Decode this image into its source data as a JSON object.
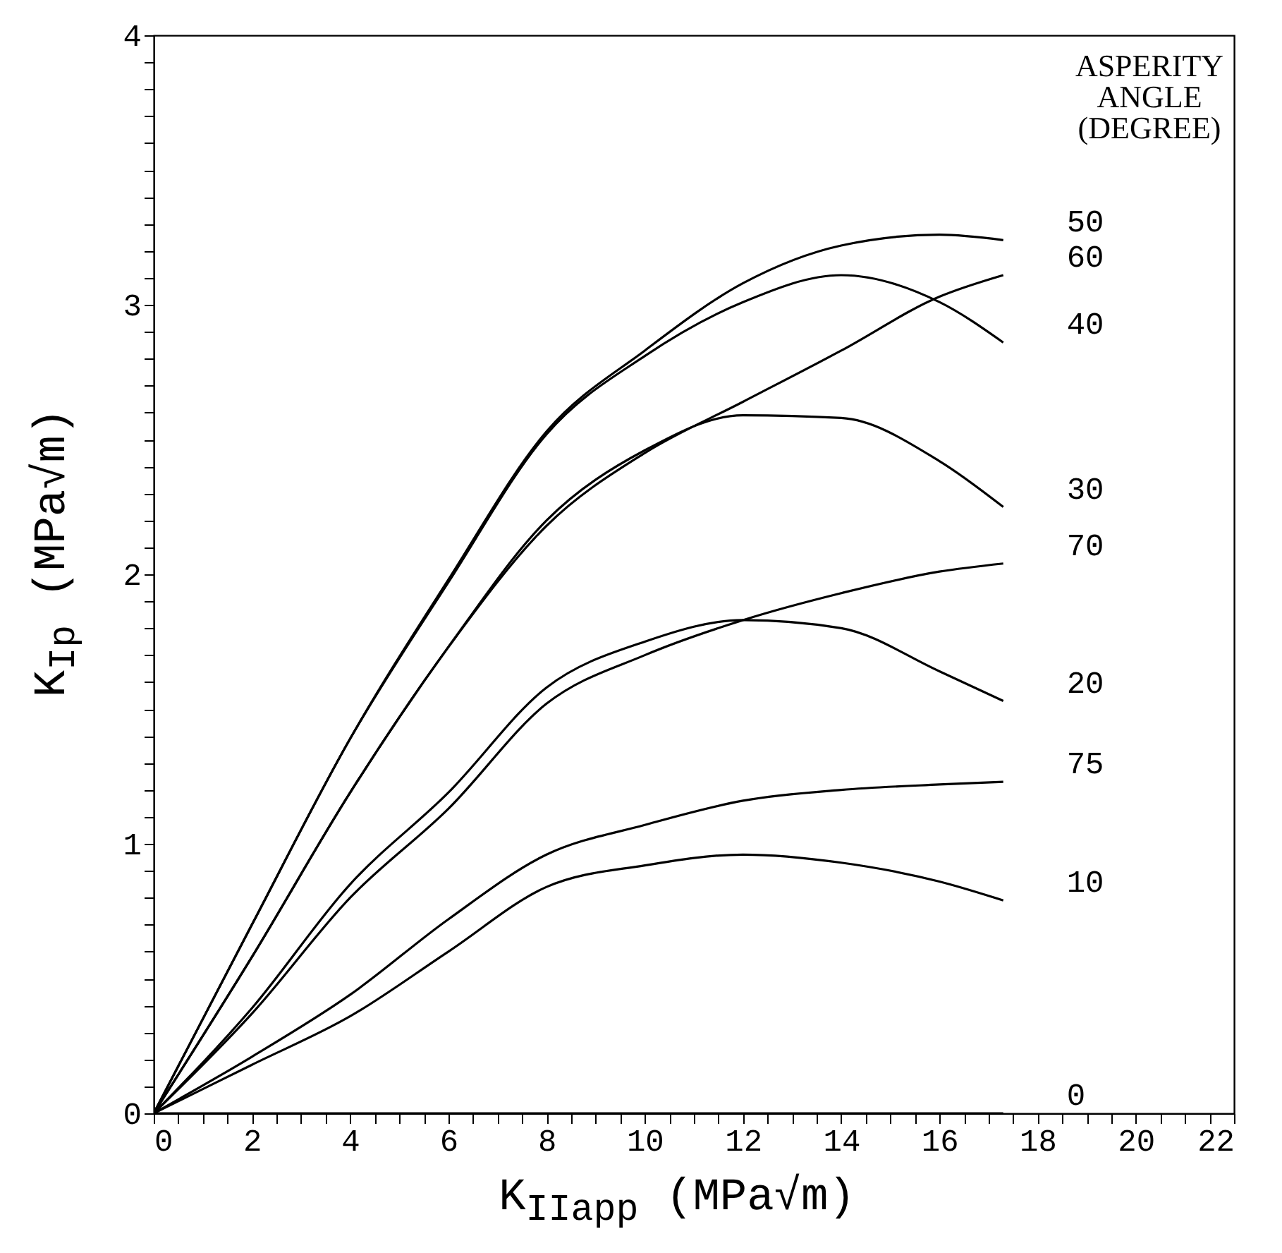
{
  "chart_data": {
    "type": "line",
    "xlabel": "K$_{IIapp}$   (MPa√m)",
    "ylabel": "K$_{Ip}$ (MPa√m)",
    "legend_title": "ASPERITY ANGLE (DEGREE)",
    "x": [
      0,
      2,
      4,
      6,
      8,
      10,
      12,
      14,
      16,
      17.3
    ],
    "xlim": [
      0,
      22
    ],
    "ylim": [
      0,
      4
    ],
    "xticks": [
      0,
      {
        "value": 0.5,
        "label": null
      },
      {
        "value": 1,
        "label": null
      },
      {
        "value": 1.5,
        "label": null
      },
      2,
      {
        "value": 2.5,
        "label": null
      },
      {
        "value": 3,
        "label": null
      },
      {
        "value": 3.5,
        "label": null
      },
      4,
      {
        "value": 4.5,
        "label": null
      },
      {
        "value": 5,
        "label": null
      },
      {
        "value": 5.5,
        "label": null
      },
      6,
      {
        "value": 6.5,
        "label": null
      },
      {
        "value": 7,
        "label": null
      },
      {
        "value": 7.5,
        "label": null
      },
      8,
      {
        "value": 8.5,
        "label": null
      },
      {
        "value": 9,
        "label": null
      },
      {
        "value": 9.5,
        "label": null
      },
      10,
      {
        "value": 10.5,
        "label": null
      },
      {
        "value": 11,
        "label": null
      },
      {
        "value": 11.5,
        "label": null
      },
      12,
      {
        "value": 12.5,
        "label": null
      },
      {
        "value": 13,
        "label": null
      },
      {
        "value": 13.5,
        "label": null
      },
      14,
      {
        "value": 14.5,
        "label": null
      },
      {
        "value": 15,
        "label": null
      },
      {
        "value": 15.5,
        "label": null
      },
      16,
      {
        "value": 16.5,
        "label": null
      },
      {
        "value": 17,
        "label": null
      },
      {
        "value": 17.5,
        "label": null
      },
      18,
      {
        "value": 18.5,
        "label": null
      },
      {
        "value": 19,
        "label": null
      },
      {
        "value": 19.5,
        "label": null
      },
      20,
      {
        "value": 20.5,
        "label": null
      },
      {
        "value": 21,
        "label": null
      },
      {
        "value": 21.5,
        "label": null
      },
      22
    ],
    "yticks": [
      0,
      {
        "value": 0.1,
        "label": null
      },
      {
        "value": 0.2,
        "label": null
      },
      {
        "value": 0.3,
        "label": null
      },
      {
        "value": 0.4,
        "label": null
      },
      {
        "value": 0.5,
        "label": null
      },
      {
        "value": 0.6,
        "label": null
      },
      {
        "value": 0.7,
        "label": null
      },
      {
        "value": 0.8,
        "label": null
      },
      {
        "value": 0.9,
        "label": null
      },
      1,
      {
        "value": 1.1,
        "label": null
      },
      {
        "value": 1.2,
        "label": null
      },
      {
        "value": 1.3,
        "label": null
      },
      {
        "value": 1.4,
        "label": null
      },
      {
        "value": 1.5,
        "label": null
      },
      {
        "value": 1.6,
        "label": null
      },
      {
        "value": 1.7,
        "label": null
      },
      {
        "value": 1.8,
        "label": null
      },
      {
        "value": 1.9,
        "label": null
      },
      2,
      {
        "value": 2.1,
        "label": null
      },
      {
        "value": 2.2,
        "label": null
      },
      {
        "value": 2.3,
        "label": null
      },
      {
        "value": 2.4,
        "label": null
      },
      {
        "value": 2.5,
        "label": null
      },
      {
        "value": 2.6,
        "label": null
      },
      {
        "value": 2.7,
        "label": null
      },
      {
        "value": 2.8,
        "label": null
      },
      {
        "value": 2.9,
        "label": null
      },
      3,
      {
        "value": 3.1,
        "label": null
      },
      {
        "value": 3.2,
        "label": null
      },
      {
        "value": 3.3,
        "label": null
      },
      {
        "value": 3.4,
        "label": null
      },
      {
        "value": 3.5,
        "label": null
      },
      {
        "value": 3.6,
        "label": null
      },
      {
        "value": 3.7,
        "label": null
      },
      {
        "value": 3.8,
        "label": null
      },
      {
        "value": 3.9,
        "label": null
      },
      4
    ],
    "series": [
      {
        "name": "50",
        "color": "#000000",
        "values": [
          0,
          0.7,
          1.39,
          1.98,
          2.53,
          2.83,
          3.08,
          3.22,
          3.26,
          3.24
        ]
      },
      {
        "name": "60",
        "color": "#000000",
        "values": [
          0,
          0.58,
          1.19,
          1.73,
          2.18,
          2.45,
          2.64,
          2.83,
          3.03,
          3.11
        ]
      },
      {
        "name": "40",
        "color": "#000000",
        "values": [
          0,
          0.7,
          1.39,
          1.97,
          2.52,
          2.81,
          3.01,
          3.11,
          3.01,
          2.86
        ]
      },
      {
        "name": "30",
        "color": "#000000",
        "values": [
          0,
          0.58,
          1.19,
          1.73,
          2.2,
          2.46,
          2.59,
          2.58,
          2.42,
          2.25
        ]
      },
      {
        "name": "70",
        "color": "#000000",
        "values": [
          0,
          0.37,
          0.8,
          1.13,
          1.52,
          1.7,
          1.83,
          1.93,
          2.01,
          2.04
        ]
      },
      {
        "name": "20",
        "color": "#000000",
        "values": [
          0,
          0.39,
          0.85,
          1.19,
          1.58,
          1.75,
          1.83,
          1.8,
          1.64,
          1.53
        ]
      },
      {
        "name": "75",
        "color": "#000000",
        "values": [
          0,
          0.21,
          0.44,
          0.72,
          0.96,
          1.07,
          1.16,
          1.2,
          1.22,
          1.23
        ]
      },
      {
        "name": "10",
        "color": "#000000",
        "values": [
          0,
          0.18,
          0.36,
          0.6,
          0.84,
          0.92,
          0.96,
          0.93,
          0.86,
          0.79
        ]
      },
      {
        "name": "0",
        "color": "#000000",
        "values": [
          0,
          0,
          0,
          0,
          0,
          0,
          0,
          0,
          0,
          0
        ]
      }
    ]
  }
}
